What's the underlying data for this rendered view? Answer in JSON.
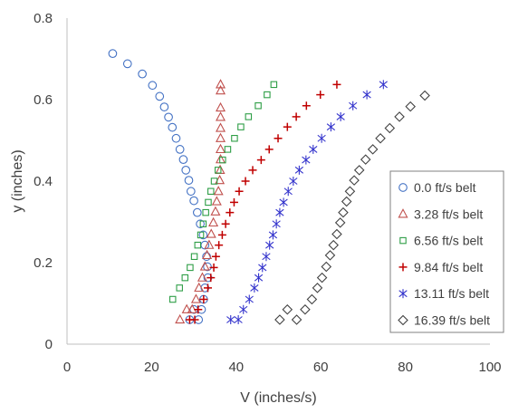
{
  "chart_data": {
    "type": "scatter",
    "title": "",
    "xlabel": "V (inches/s)",
    "ylabel": "y (inches)",
    "xlim": [
      0,
      100
    ],
    "ylim": [
      0,
      0.8
    ],
    "xticks": [
      "0",
      "20",
      "40",
      "60",
      "80",
      "100"
    ],
    "yticks": [
      "0",
      "0.2",
      "0.4",
      "0.6",
      "0.8"
    ],
    "grid": false,
    "legend_position": "right",
    "series": [
      {
        "name": "0.0 ft/s belt",
        "marker": "circle",
        "color": "#4472c4",
        "x": [
          10.8,
          14.3,
          17.8,
          20.2,
          21.9,
          23.0,
          24.0,
          24.9,
          25.8,
          26.7,
          27.5,
          28.1,
          28.8,
          29.3,
          30.0,
          30.8,
          31.5,
          32.2,
          32.6,
          33.0,
          33.2,
          33.3,
          32.6,
          32.3,
          31.8,
          31.1,
          30.0,
          29.0
        ],
        "y": [
          0.713,
          0.688,
          0.663,
          0.635,
          0.608,
          0.582,
          0.557,
          0.532,
          0.505,
          0.478,
          0.453,
          0.427,
          0.402,
          0.375,
          0.352,
          0.323,
          0.295,
          0.268,
          0.243,
          0.215,
          0.19,
          0.163,
          0.138,
          0.11,
          0.085,
          0.06,
          0.085,
          0.06
        ]
      },
      {
        "name": "3.28 ft/s belt",
        "marker": "triangle",
        "color": "#c0504d",
        "x": [
          36.3,
          36.3,
          36.3,
          36.3,
          36.3,
          36.3,
          36.3,
          36.3,
          36.2,
          36.1,
          35.8,
          35.4,
          35.1,
          34.6,
          34.1,
          33.6,
          33.1,
          32.6,
          32.0,
          31.2,
          30.5,
          29.6,
          28.3,
          26.7
        ],
        "y": [
          0.637,
          0.622,
          0.58,
          0.557,
          0.53,
          0.505,
          0.478,
          0.453,
          0.427,
          0.402,
          0.375,
          0.35,
          0.325,
          0.298,
          0.27,
          0.243,
          0.218,
          0.19,
          0.163,
          0.138,
          0.11,
          0.085,
          0.085,
          0.06
        ]
      },
      {
        "name": "6.56 ft/s belt",
        "marker": "square",
        "color": "#2e9e46",
        "x": [
          48.9,
          47.3,
          45.2,
          42.9,
          41.1,
          39.6,
          38.0,
          36.8,
          35.7,
          34.8,
          34.0,
          33.4,
          32.8,
          32.2,
          31.6,
          30.9,
          30.1,
          29.1,
          27.9,
          26.6,
          25.0
        ],
        "y": [
          0.637,
          0.612,
          0.585,
          0.558,
          0.533,
          0.505,
          0.478,
          0.452,
          0.427,
          0.4,
          0.375,
          0.348,
          0.323,
          0.295,
          0.268,
          0.243,
          0.215,
          0.188,
          0.163,
          0.138,
          0.11
        ]
      },
      {
        "name": "9.84 ft/s belt",
        "marker": "plus",
        "color": "#c00000",
        "x": [
          63.8,
          59.9,
          56.6,
          54.2,
          52.1,
          49.9,
          47.8,
          45.9,
          43.9,
          42.2,
          40.7,
          39.5,
          38.5,
          37.5,
          36.7,
          35.9,
          35.2,
          34.7,
          34.0,
          33.3,
          32.3,
          31.0,
          30.2,
          29.0
        ],
        "y": [
          0.637,
          0.612,
          0.585,
          0.558,
          0.533,
          0.505,
          0.478,
          0.452,
          0.427,
          0.4,
          0.375,
          0.348,
          0.323,
          0.295,
          0.268,
          0.243,
          0.215,
          0.188,
          0.163,
          0.138,
          0.11,
          0.085,
          0.06,
          0.06
        ]
      },
      {
        "name": "13.11 ft/s belt",
        "marker": "asterisk",
        "color": "#3333cc",
        "x": [
          74.8,
          70.9,
          67.6,
          64.7,
          62.4,
          60.2,
          58.2,
          56.5,
          54.9,
          53.5,
          52.3,
          51.2,
          50.3,
          49.5,
          48.7,
          47.9,
          47.1,
          46.2,
          45.3,
          44.3,
          43.1,
          41.7,
          40.5,
          38.7
        ],
        "y": [
          0.637,
          0.612,
          0.585,
          0.558,
          0.533,
          0.505,
          0.478,
          0.452,
          0.427,
          0.4,
          0.375,
          0.348,
          0.323,
          0.295,
          0.268,
          0.243,
          0.215,
          0.188,
          0.163,
          0.138,
          0.11,
          0.085,
          0.06,
          0.06
        ]
      },
      {
        "name": "16.39 ft/s belt",
        "marker": "diamond",
        "color": "#404040",
        "x": [
          84.6,
          81.2,
          78.6,
          76.3,
          74.1,
          72.3,
          70.6,
          69.1,
          67.9,
          66.9,
          66.1,
          65.3,
          64.6,
          63.8,
          63.0,
          62.2,
          61.3,
          60.3,
          59.2,
          57.9,
          56.3,
          54.3,
          52.1,
          50.3
        ],
        "y": [
          0.61,
          0.583,
          0.558,
          0.53,
          0.505,
          0.478,
          0.453,
          0.427,
          0.402,
          0.375,
          0.35,
          0.323,
          0.298,
          0.27,
          0.243,
          0.218,
          0.19,
          0.163,
          0.138,
          0.11,
          0.085,
          0.06,
          0.085,
          0.06
        ]
      }
    ]
  }
}
